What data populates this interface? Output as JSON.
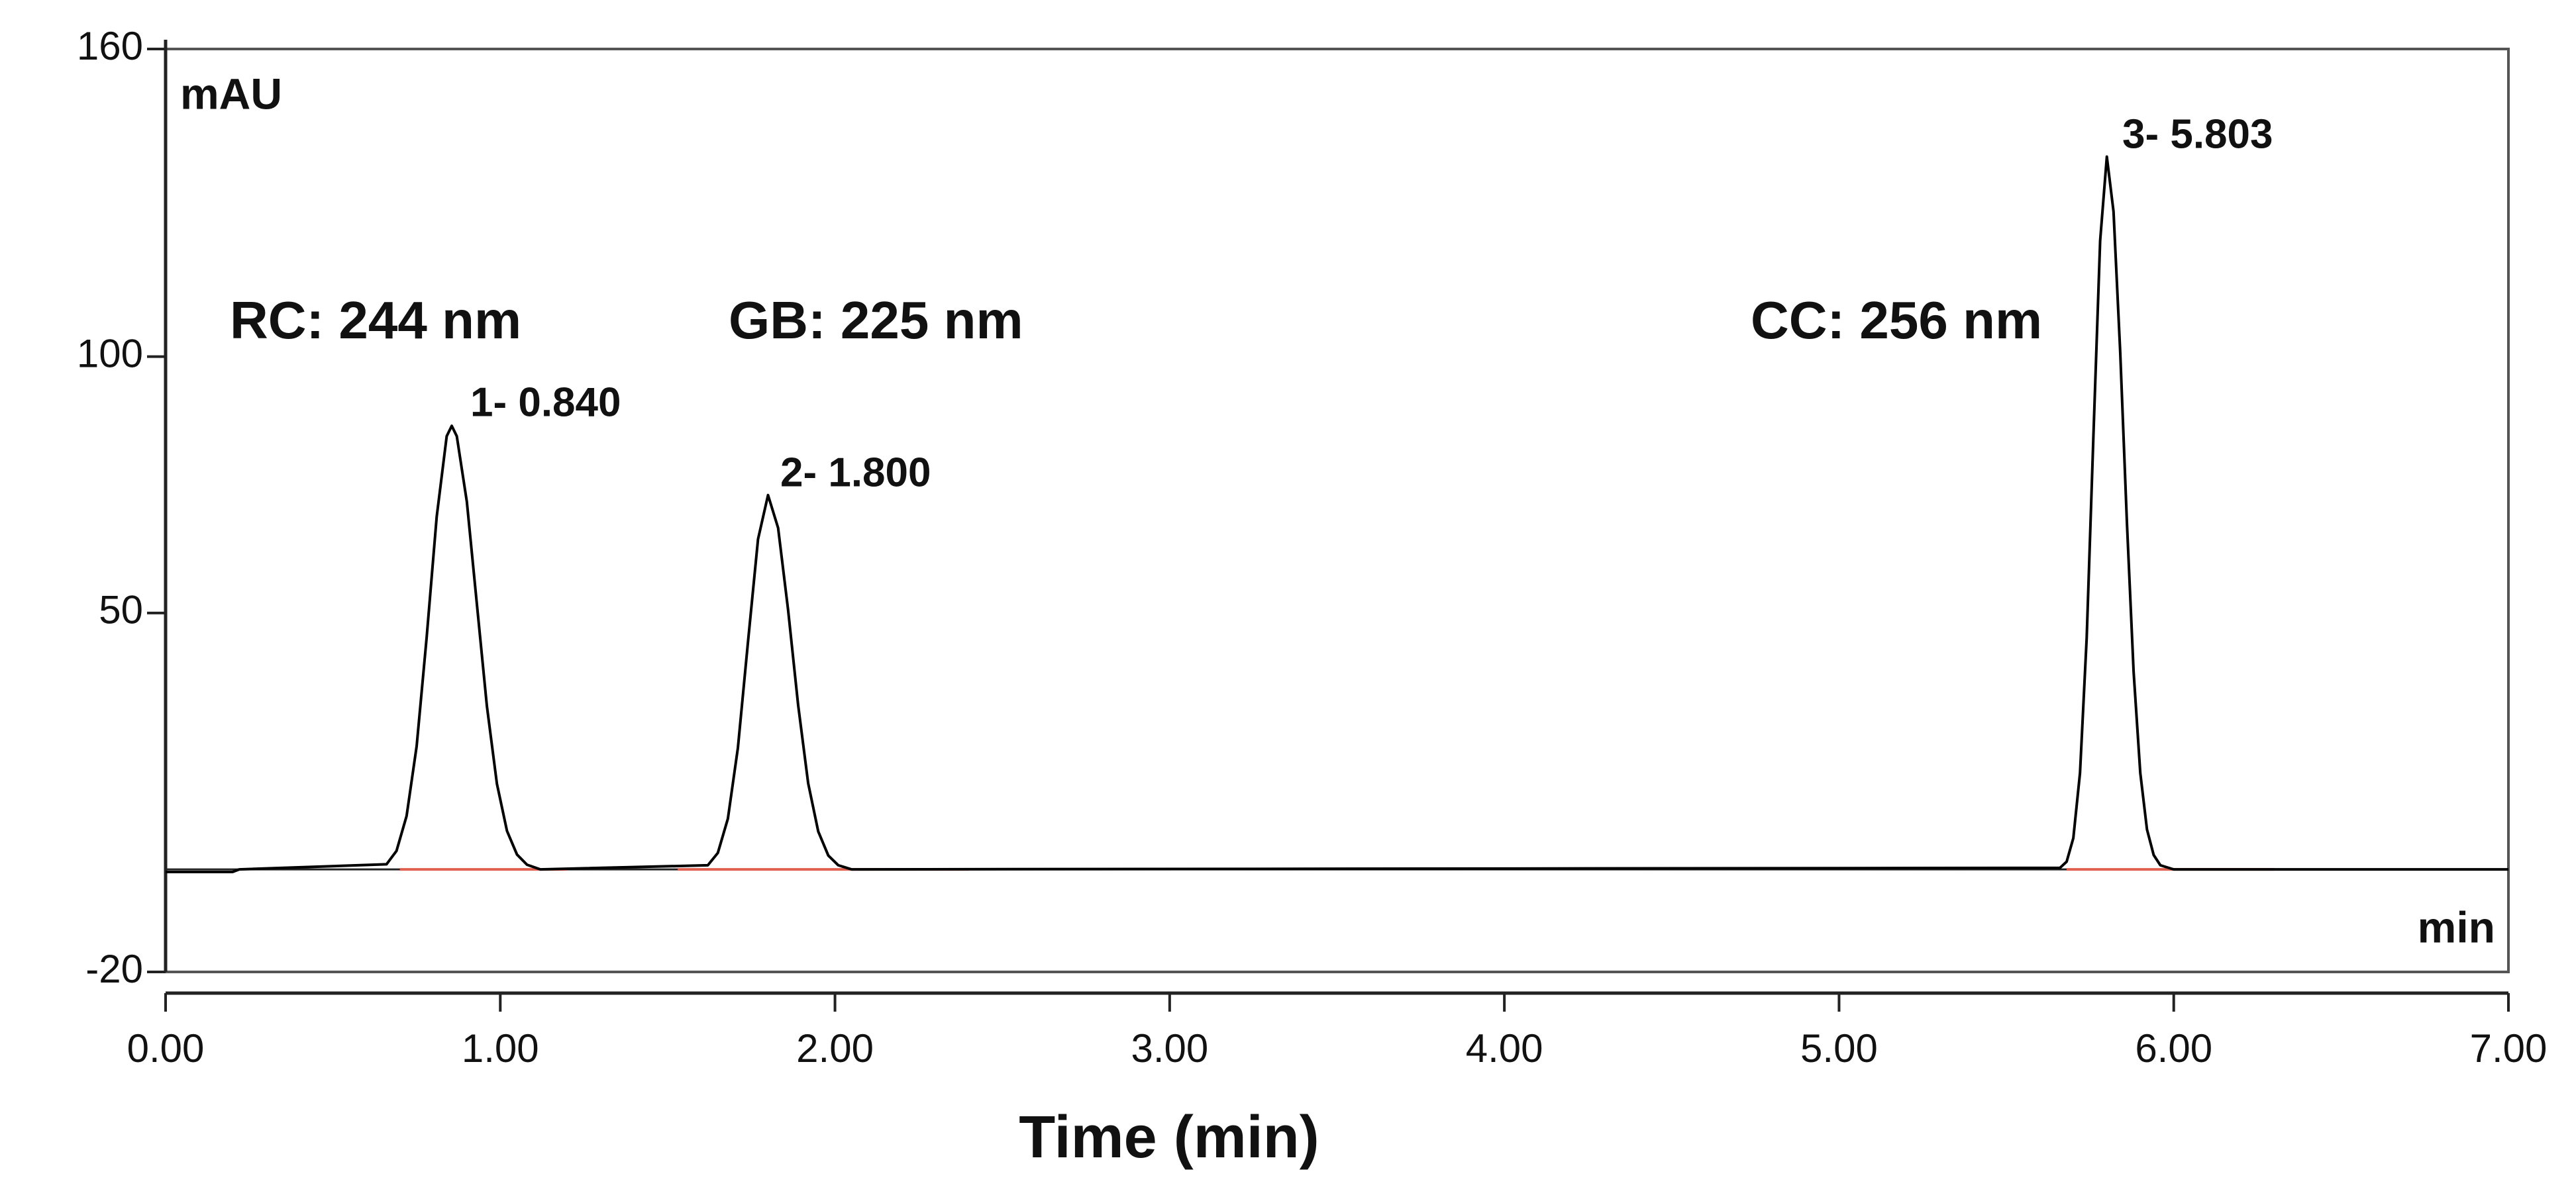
{
  "chart_data": {
    "type": "line",
    "y_label": "mAU",
    "x_unit_label": "min",
    "x_title": "Time (min)",
    "x": [
      0,
      0.2,
      0.22,
      0.66,
      0.69,
      0.72,
      0.75,
      0.78,
      0.81,
      0.84,
      0.855,
      0.87,
      0.9,
      0.93,
      0.96,
      0.99,
      1.02,
      1.05,
      1.08,
      1.12,
      1.62,
      1.65,
      1.68,
      1.71,
      1.74,
      1.77,
      1.8,
      1.83,
      1.86,
      1.89,
      1.92,
      1.95,
      1.98,
      2.01,
      2.05,
      5.66,
      5.68,
      5.7,
      5.72,
      5.74,
      5.76,
      5.78,
      5.8,
      5.82,
      5.84,
      5.86,
      5.88,
      5.9,
      5.92,
      5.94,
      5.96,
      6.0,
      7.0
    ],
    "series": [
      {
        "color": "#000000",
        "values": [
          -0.5,
          -0.5,
          0,
          1.0,
          3.6,
          10.4,
          24.0,
          45.2,
          68.8,
          84.5,
          86.5,
          84.5,
          71.7,
          51.8,
          31.8,
          16.7,
          7.5,
          2.9,
          0.9,
          0,
          0.8,
          3.2,
          9.9,
          23.7,
          44.3,
          64.4,
          73,
          66.6,
          50.6,
          32.0,
          16.8,
          7.4,
          2.7,
          0.8,
          0,
          0.3,
          1.5,
          6.1,
          18.8,
          45.2,
          84.4,
          122.6,
          139,
          128.3,
          100.9,
          67.7,
          38.6,
          18.8,
          7.8,
          2.8,
          0.8,
          0,
          0
        ]
      }
    ],
    "baseline_segments": [
      [
        0.7,
        1.2
      ],
      [
        1.53,
        2.4
      ],
      [
        5.68,
        6.3
      ]
    ],
    "baseline_color": "#e06050",
    "annotations": [
      "RC: 244 nm",
      "GB: 225 nm",
      "CC: 256 nm",
      "1- 0.840",
      "2- 1.800",
      "3- 5.803"
    ],
    "xlim": [
      0,
      7
    ],
    "xticks": [
      {
        "value": 0,
        "label": "0.00"
      },
      {
        "value": 1,
        "label": "1.00"
      },
      {
        "value": 2,
        "label": "2.00"
      },
      {
        "value": 3,
        "label": "3.00"
      },
      {
        "value": 4,
        "label": "4.00"
      },
      {
        "value": 5,
        "label": "5.00"
      },
      {
        "value": 6,
        "label": "6.00"
      },
      {
        "value": 7,
        "label": "7.00"
      }
    ],
    "ylim": [
      -20,
      160
    ],
    "yticks": [
      -20,
      50,
      100,
      160
    ],
    "grid": false
  }
}
